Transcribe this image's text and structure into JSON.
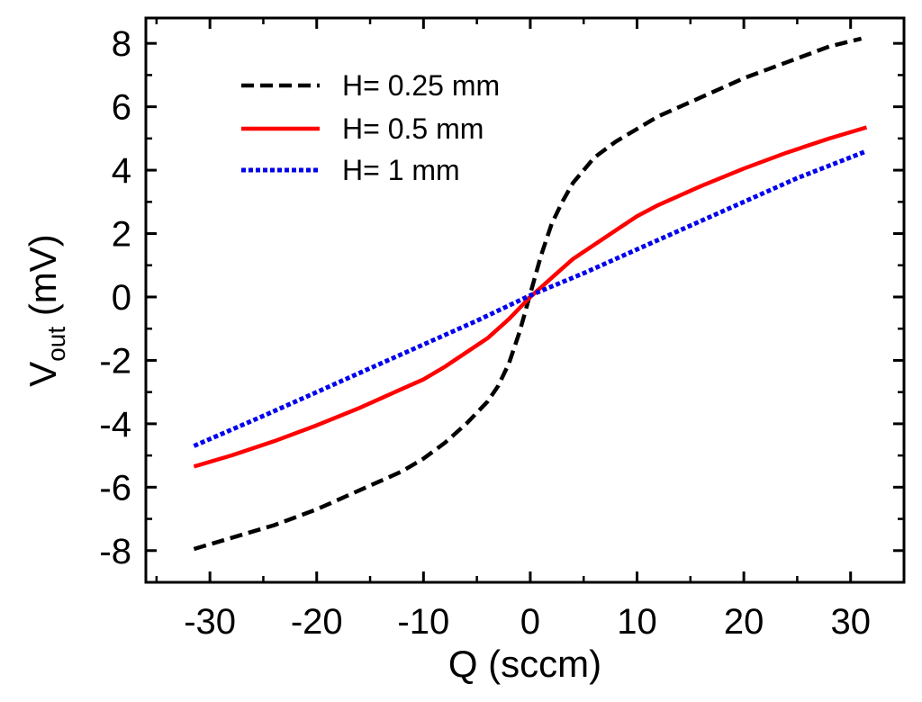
{
  "chart_data": {
    "type": "line",
    "title": "",
    "xlabel": "Q (sccm)",
    "ylabel": {
      "main": "V",
      "subscript": "out",
      "unit": " (mV)"
    },
    "xlim": [
      -36,
      35
    ],
    "ylim": [
      -9,
      8.8
    ],
    "xticks": [
      -30,
      -20,
      -10,
      0,
      10,
      20,
      30
    ],
    "xtick_labels": [
      "-30",
      "-20",
      "-10",
      "0",
      "10",
      "20",
      "30"
    ],
    "yticks": [
      -8,
      -6,
      -4,
      -2,
      0,
      2,
      4,
      6,
      8
    ],
    "ytick_labels": [
      "-8",
      "-6",
      "-4",
      "-2",
      "0",
      "2",
      "4",
      "6",
      "8"
    ],
    "grid": false,
    "legend_position": "top-left",
    "series": [
      {
        "name": "H= 0.25 mm",
        "color": "#000000",
        "style": "dashed",
        "x": [
          -31.5,
          -28,
          -24,
          -20,
          -16,
          -12,
          -10,
          -8,
          -6,
          -4,
          -3,
          -2,
          -1,
          -0.5,
          0,
          0.5,
          1,
          2,
          3,
          4,
          6,
          8,
          10,
          12,
          16,
          20,
          24,
          28,
          31
        ],
        "y": [
          -7.95,
          -7.6,
          -7.2,
          -6.7,
          -6.1,
          -5.5,
          -5.1,
          -4.6,
          -4.0,
          -3.3,
          -2.8,
          -2.1,
          -1.1,
          -0.5,
          0.1,
          0.7,
          1.3,
          2.3,
          3.0,
          3.6,
          4.4,
          4.9,
          5.3,
          5.7,
          6.3,
          6.9,
          7.4,
          7.9,
          8.15
        ]
      },
      {
        "name": "H= 0.5 mm",
        "color": "#ff0000",
        "style": "solid",
        "x": [
          -31.5,
          -28,
          -24,
          -20,
          -16,
          -12,
          -10,
          -8,
          -6,
          -4,
          -2,
          0,
          2,
          4,
          6,
          8,
          10,
          12,
          16,
          20,
          24,
          28,
          31.5
        ],
        "y": [
          -5.35,
          -5.0,
          -4.55,
          -4.05,
          -3.5,
          -2.9,
          -2.6,
          -2.2,
          -1.75,
          -1.3,
          -0.7,
          0.0,
          0.6,
          1.2,
          1.65,
          2.1,
          2.55,
          2.9,
          3.5,
          4.05,
          4.55,
          5.0,
          5.35
        ]
      },
      {
        "name": "H= 1 mm",
        "color": "#0000ee",
        "style": "dotted",
        "x": [
          -31.5,
          -25,
          -20,
          -15,
          -10,
          -5,
          0,
          5,
          10,
          15,
          20,
          25,
          31.5
        ],
        "y": [
          -4.7,
          -3.75,
          -3.0,
          -2.25,
          -1.5,
          -0.75,
          0.05,
          0.75,
          1.5,
          2.25,
          3.0,
          3.75,
          4.6
        ]
      }
    ]
  }
}
